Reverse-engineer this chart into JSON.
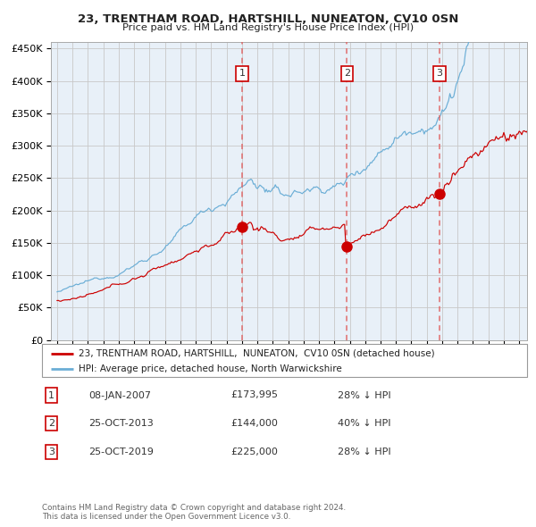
{
  "title": "23, TRENTHAM ROAD, HARTSHILL, NUNEATON, CV10 0SN",
  "subtitle": "Price paid vs. HM Land Registry's House Price Index (HPI)",
  "legend_red": "23, TRENTHAM ROAD, HARTSHILL,  NUNEATON,  CV10 0SN (detached house)",
  "legend_blue": "HPI: Average price, detached house, North Warwickshire",
  "footer1": "Contains HM Land Registry data © Crown copyright and database right 2024.",
  "footer2": "This data is licensed under the Open Government Licence v3.0.",
  "transactions": [
    {
      "num": 1,
      "date": "08-JAN-2007",
      "price": "£173,995",
      "pct": "28% ↓ HPI"
    },
    {
      "num": 2,
      "date": "25-OCT-2013",
      "price": "£144,000",
      "pct": "40% ↓ HPI"
    },
    {
      "num": 3,
      "date": "25-OCT-2019",
      "price": "£225,000",
      "pct": "28% ↓ HPI"
    }
  ],
  "transaction_dates_num": [
    2007.03,
    2013.82,
    2019.82
  ],
  "transaction_prices": [
    173995,
    144000,
    225000
  ],
  "ylim": [
    0,
    460000
  ],
  "xlim_start": 1994.6,
  "xlim_end": 2025.5,
  "red_color": "#cc0000",
  "blue_color": "#6baed6",
  "fill_color": "#e8f0f8",
  "background_color": "#ffffff",
  "grid_color": "#c8c8c8",
  "dashed_line_color": "#e06060"
}
